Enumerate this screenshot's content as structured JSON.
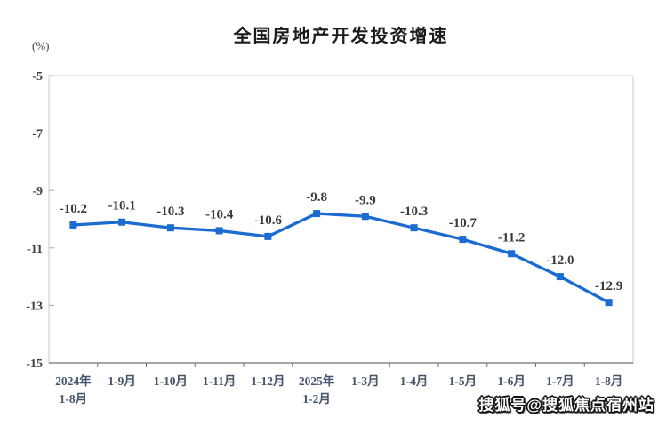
{
  "header": {
    "title": "全国房地产开发投资增速",
    "unit_label": "(%)"
  },
  "watermark": {
    "text": "搜狐号@搜狐焦点宿州站"
  },
  "chart_data": {
    "type": "line",
    "title": "全国房地产开发投资增速",
    "ylabel": "(%)",
    "xlabel": "",
    "categories": [
      "2024年 1-8月",
      "1-9月",
      "1-10月",
      "1-11月",
      "1-12月",
      "2025年 1-2月",
      "1-3月",
      "1-4月",
      "1-5月",
      "1-6月",
      "1-7月",
      "1-8月"
    ],
    "categories_lines": [
      [
        "2024年",
        "1-8月"
      ],
      [
        "1-9月"
      ],
      [
        "1-10月"
      ],
      [
        "1-11月"
      ],
      [
        "1-12月"
      ],
      [
        "2025年",
        "1-2月"
      ],
      [
        "1-3月"
      ],
      [
        "1-4月"
      ],
      [
        "1-5月"
      ],
      [
        "1-6月"
      ],
      [
        "1-7月"
      ],
      [
        "1-8月"
      ]
    ],
    "values": [
      -10.2,
      -10.1,
      -10.3,
      -10.4,
      -10.6,
      -9.8,
      -9.9,
      -10.3,
      -10.7,
      -11.2,
      -12.0,
      -12.9
    ],
    "data_labels": [
      "-10.2",
      "-10.1",
      "-10.3",
      "-10.4",
      "-10.6",
      "-9.8",
      "-9.9",
      "-10.3",
      "-10.7",
      "-11.2",
      "-12.0",
      "-12.9"
    ],
    "ylim": [
      -15,
      -5
    ],
    "yticks": [
      -5,
      -7,
      -9,
      -11,
      -13,
      -15
    ],
    "grid": false,
    "legend": "none",
    "marker": "square",
    "colors": {
      "line": "#1C6BD0",
      "data_label": "#3a3a3a",
      "y_tick_label": "#404040",
      "x_tick_label": "#44546A",
      "plot_border": "#c8c8c8",
      "bottom_axis": "#6f6f6f"
    }
  }
}
